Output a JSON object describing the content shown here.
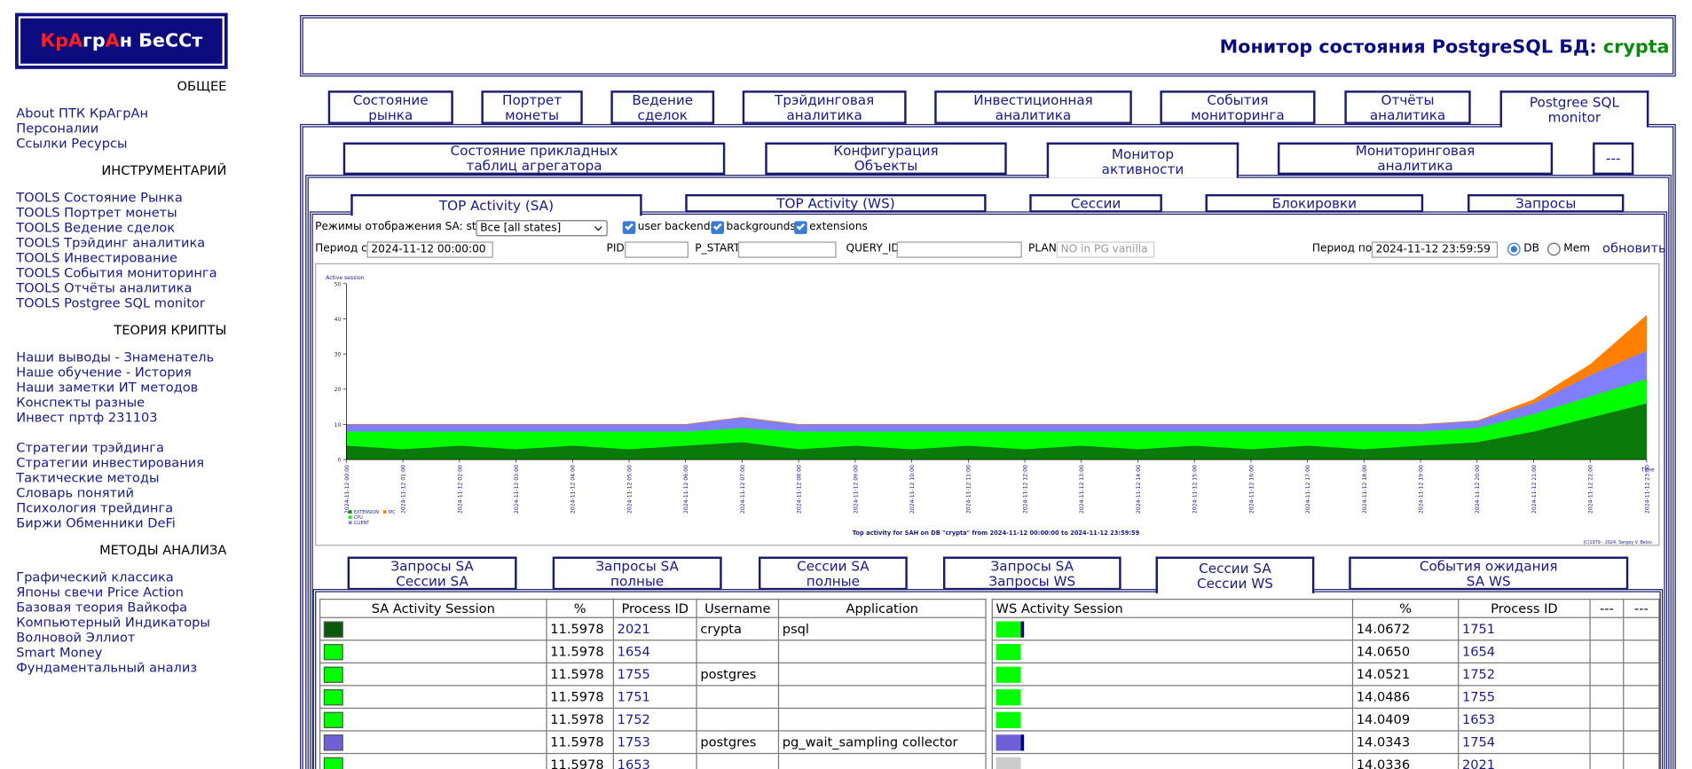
{
  "logo": [
    {
      "text": "КрА",
      "color": "#ff2020"
    },
    {
      "text": "гр",
      "color": "#ffffff"
    },
    {
      "text": "А",
      "color": "#ff2020"
    },
    {
      "text": "н БеССт",
      "color": "#ffffff"
    }
  ],
  "sidebar": {
    "sections": [
      {
        "title": "ОБЩЕЕ",
        "groups": [
          [
            "About ПТК КрАгрАн",
            "Персоналии",
            "Ссылки Ресурсы"
          ]
        ]
      },
      {
        "title": "ИНСТРУМЕНТАРИЙ",
        "groups": [
          [
            "TOOLS Состояние Рынка",
            "TOOLS Портрет монеты",
            "TOOLS Ведение сделок",
            "TOOLS Трэйдинг аналитика",
            "TOOLS Инвестирование",
            "TOOLS События мониторинга",
            "TOOLS Отчёты аналитика",
            "TOOLS Postgree SQL monitor"
          ]
        ]
      },
      {
        "title": "ТЕОРИЯ КРИПТЫ",
        "groups": [
          [
            "Наши выводы - Знаменатель",
            "Наше обучение - История",
            "Наши заметки ИТ методов",
            "Конспекты разные",
            "Инвест пртф 231103"
          ],
          [
            "Стратегии трэйдинга",
            "Стратегии инвестирования",
            "Тактические методы",
            "Словарь понятий",
            "Психология трейдинга",
            "Биржи Обменники DeFi"
          ]
        ]
      },
      {
        "title": "МЕТОДЫ АНАЛИЗА",
        "groups": [
          [
            "Графический классика",
            "Японы свечи Price Action",
            "Базовая теория Вайкофа",
            "Компьютерный Индикаторы",
            "Волновой Эллиот",
            "Smart Money",
            "Фундаментальный анализ"
          ]
        ]
      }
    ]
  },
  "header": {
    "title": "Монитор состояния PostgreSQL БД: ",
    "db": "crypta"
  },
  "tabs": {
    "level1": [
      {
        "label": "Состояние\nрынка"
      },
      {
        "label": "Портрет\nмонеты"
      },
      {
        "label": "Ведение\nсделок"
      },
      {
        "label": "Трэйдинговая\nаналитика"
      },
      {
        "label": "Инвестиционная\nаналитика"
      },
      {
        "label": "События\nмониторинга"
      },
      {
        "label": "Отчёты\nаналитика"
      },
      {
        "label": "Postgree SQL\nmonitor",
        "active": true
      }
    ],
    "level2": [
      {
        "label": "Состояние прикладных\nтаблиц агрегатора"
      },
      {
        "label": "Конфигурация\nОбъекты"
      },
      {
        "label": "Монитор\nактивности",
        "active": true
      },
      {
        "label": "Мониторинговая\nаналитика"
      },
      {
        "label": "---"
      }
    ],
    "level3": [
      {
        "label": "TOP Activity (SA)",
        "active": true
      },
      {
        "label": "TOP Activity (WS)"
      },
      {
        "label": "Сессии"
      },
      {
        "label": "Блокировки"
      },
      {
        "label": "Запросы"
      }
    ],
    "level4": [
      {
        "label": "Запросы SA\nСессии SA"
      },
      {
        "label": "Запросы SA\nполные"
      },
      {
        "label": "Сессии SA\nполные"
      },
      {
        "label": "Запросы SA\nЗапросы WS"
      },
      {
        "label": "Сессии SA\nСессии WS",
        "active": true
      },
      {
        "label": "События ожидания\nSA WS"
      }
    ]
  },
  "controls": {
    "mode_label": "Режимы отображения SA: state",
    "mode_select": "Все [all states]",
    "checkboxes": [
      "user backends",
      "backgrounds",
      "extensions"
    ],
    "period_from_label": "Период с",
    "period_from": "2024-11-12 00:00:00",
    "pid_label": "PID",
    "pstart_label": "P_START",
    "query_id_label": "QUERY_ID",
    "plan_label": "PLAN",
    "plan_placeholder": "NO in PG vanilla",
    "period_to_label": "Период по",
    "period_to": "2024-11-12 23:59:59",
    "radios": [
      {
        "label": "DB",
        "checked": true
      },
      {
        "label": "Mem"
      }
    ],
    "refresh": "обновить"
  },
  "chart_data": {
    "type": "area",
    "stacked": true,
    "y_label": "Active session",
    "x_label": "Time",
    "title": "Top activity for SAH on DB \"crypta\" from 2024-11-12 00:00:00 to 2024-11-12 23:59:59",
    "credit": "(C)1979 - 2024, Sergey V. Belov",
    "ylim": [
      0,
      50
    ],
    "yticks": [
      0,
      10,
      20,
      30,
      40,
      50
    ],
    "categories": [
      "2024-11-12 00:00",
      "2024-11-12 01:00",
      "2024-11-12 02:00",
      "2024-11-12 03:00",
      "2024-11-12 04:00",
      "2024-11-12 05:00",
      "2024-11-12 06:00",
      "2024-11-12 07:00",
      "2024-11-12 08:00",
      "2024-11-12 09:00",
      "2024-11-12 10:00",
      "2024-11-12 11:00",
      "2024-11-12 12:00",
      "2024-11-12 13:00",
      "2024-11-12 14:00",
      "2024-11-12 15:00",
      "2024-11-12 16:00",
      "2024-11-12 17:00",
      "2024-11-12 18:00",
      "2024-11-12 19:00",
      "2024-11-12 20:00",
      "2024-11-12 21:00",
      "2024-11-12 22:00",
      "2024-11-12 23:00"
    ],
    "series": [
      {
        "name": "EXTENSION",
        "color": "#0a7a0a",
        "values": [
          4,
          3,
          4,
          3,
          4,
          3,
          4,
          5,
          3,
          4,
          3,
          4,
          3,
          4,
          3,
          4,
          3,
          4,
          3,
          4,
          5,
          8,
          12,
          16
        ]
      },
      {
        "name": "CPU",
        "color": "#00ff00",
        "values": [
          4,
          5,
          4,
          5,
          4,
          5,
          4,
          4,
          5,
          4,
          5,
          4,
          5,
          4,
          5,
          4,
          5,
          4,
          5,
          4,
          4,
          5,
          6,
          7
        ]
      },
      {
        "name": "CLIENT",
        "color": "#8080ff",
        "values": [
          2,
          2,
          2,
          2,
          2,
          2,
          2,
          3,
          2,
          2,
          2,
          2,
          2,
          2,
          2,
          2,
          2,
          2,
          2,
          2,
          2,
          3,
          6,
          8
        ]
      },
      {
        "name": "IPC",
        "color": "#ff8000",
        "values": [
          0,
          0,
          0,
          0,
          0,
          0,
          0,
          0,
          0,
          0,
          0,
          0,
          0,
          0,
          0,
          0,
          0,
          0,
          0,
          0,
          0,
          1,
          3,
          10
        ]
      }
    ]
  },
  "sa_table": {
    "columns": [
      "SA Activity Session",
      "%",
      "Process ID",
      "Username",
      "Application"
    ],
    "rows": [
      {
        "color": "#0b5a0b",
        "pct": "11.5978",
        "pid": "2021",
        "user": "crypta",
        "app": "psql"
      },
      {
        "color": "#00ff00",
        "pct": "11.5978",
        "pid": "1654"
      },
      {
        "color": "#00ff00",
        "pct": "11.5978",
        "pid": "1755",
        "user": "postgres"
      },
      {
        "color": "#00ff00",
        "pct": "11.5978",
        "pid": "1751"
      },
      {
        "color": "#00ff00",
        "pct": "11.5978",
        "pid": "1752"
      },
      {
        "color": "#7060d8",
        "pct": "11.5978",
        "pid": "1753",
        "user": "postgres",
        "app": "pg_wait_sampling collector"
      },
      {
        "color": "#00ff00",
        "pct": "11.5978",
        "pid": "1653"
      }
    ]
  },
  "ws_table": {
    "columns": [
      "WS Activity Session",
      "%",
      "Process ID",
      "---",
      "---"
    ],
    "rows": [
      {
        "colors": [
          "#00ff00",
          "#000080"
        ],
        "pct": "14.0672",
        "pid": "1751"
      },
      {
        "colors": [
          "#00ff00"
        ],
        "pct": "14.0650",
        "pid": "1654"
      },
      {
        "colors": [
          "#00ff00"
        ],
        "pct": "14.0521",
        "pid": "1752"
      },
      {
        "colors": [
          "#00ff00"
        ],
        "pct": "14.0486",
        "pid": "1755"
      },
      {
        "colors": [
          "#00ff00"
        ],
        "pct": "14.0409",
        "pid": "1653"
      },
      {
        "colors": [
          "#7060d8",
          "#000080"
        ],
        "pct": "14.0343",
        "pid": "1754"
      },
      {
        "colors": [
          "#cccccc"
        ],
        "pct": "14.0336",
        "pid": "2021"
      }
    ]
  }
}
